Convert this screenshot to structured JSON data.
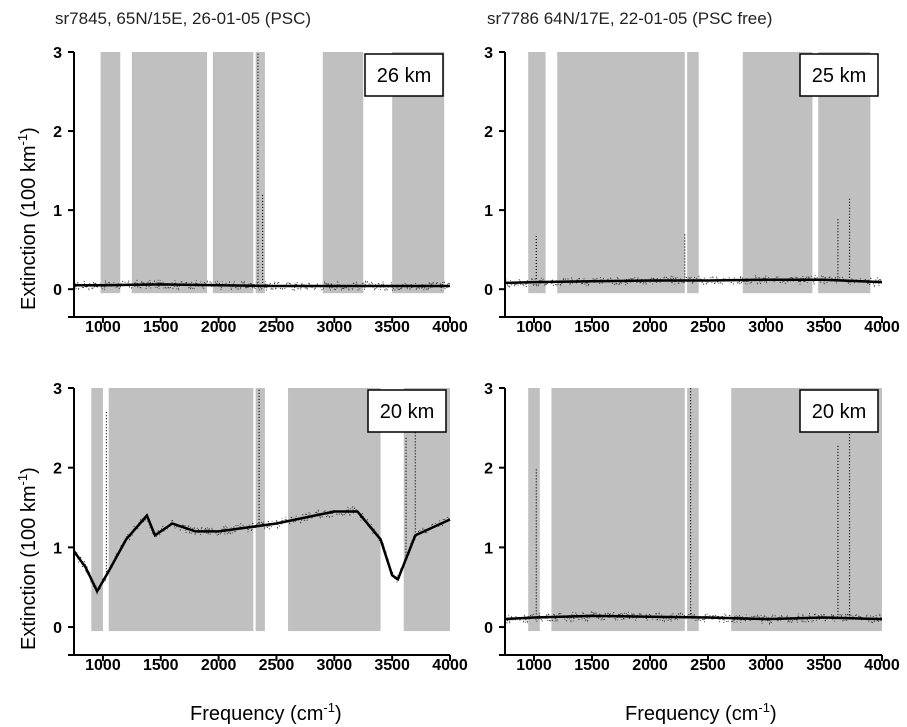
{
  "figure": {
    "ylabel": "Extinction (100 km",
    "ylabel_sup": "-1",
    "ylabel_close": ")",
    "xlabel": "Frequency (cm",
    "xlabel_sup": "-1",
    "xlabel_close": ")"
  },
  "chart_data": [
    {
      "type": "line",
      "title": "sr7845, 65N/15E, 26-01-05 (PSC)",
      "annotation": "26 km",
      "xlim": [
        750,
        4000
      ],
      "ylim": [
        -0.2,
        3
      ],
      "xticks": [
        1000,
        1500,
        2000,
        2500,
        3000,
        3500,
        4000
      ],
      "yticks": [
        0,
        1,
        2,
        3
      ],
      "fit_curve": {
        "x": [
          750,
          1000,
          1500,
          2000,
          2500,
          3000,
          3500,
          4000
        ],
        "y": [
          0.05,
          0.05,
          0.06,
          0.05,
          0.04,
          0.04,
          0.04,
          0.04
        ]
      },
      "gray_bands": [
        [
          980,
          1150
        ],
        [
          1250,
          1900
        ],
        [
          1950,
          2300
        ],
        [
          2320,
          2400
        ],
        [
          2900,
          3250
        ],
        [
          3500,
          3950
        ]
      ],
      "spikes": [
        {
          "x": 2340,
          "y": 3.0
        },
        {
          "x": 2380,
          "y": 1.2
        }
      ]
    },
    {
      "type": "line",
      "title": "sr7786 64N/17E, 22-01-05 (PSC free)",
      "annotation": "25 km",
      "xlim": [
        750,
        4000
      ],
      "ylim": [
        -0.2,
        3
      ],
      "xticks": [
        1000,
        1500,
        2000,
        2500,
        3000,
        3500,
        4000
      ],
      "yticks": [
        0,
        1,
        2,
        3
      ],
      "fit_curve": {
        "x": [
          750,
          1000,
          1500,
          2000,
          2500,
          3000,
          3500,
          4000
        ],
        "y": [
          0.08,
          0.09,
          0.1,
          0.11,
          0.11,
          0.12,
          0.12,
          0.09
        ]
      },
      "gray_bands": [
        [
          950,
          1100
        ],
        [
          1200,
          2300
        ],
        [
          2320,
          2420
        ],
        [
          2800,
          3400
        ],
        [
          3450,
          3900
        ]
      ],
      "spikes": [
        {
          "x": 1020,
          "y": 0.7
        },
        {
          "x": 2300,
          "y": 0.7
        },
        {
          "x": 3620,
          "y": 0.9
        },
        {
          "x": 3720,
          "y": 1.15
        }
      ]
    },
    {
      "type": "line",
      "title": "",
      "annotation": "20 km",
      "xlim": [
        750,
        4000
      ],
      "ylim": [
        -0.2,
        3
      ],
      "xticks": [
        1000,
        1500,
        2000,
        2500,
        3000,
        3500,
        4000
      ],
      "yticks": [
        0,
        1,
        2,
        3
      ],
      "fit_curve": {
        "x": [
          750,
          850,
          950,
          1050,
          1200,
          1380,
          1450,
          1600,
          1800,
          2000,
          2500,
          3000,
          3200,
          3400,
          3500,
          3550,
          3700,
          4000
        ],
        "y": [
          0.95,
          0.75,
          0.45,
          0.7,
          1.1,
          1.4,
          1.15,
          1.3,
          1.2,
          1.2,
          1.3,
          1.45,
          1.45,
          1.1,
          0.65,
          0.6,
          1.15,
          1.35
        ]
      },
      "gray_bands": [
        [
          900,
          1000
        ],
        [
          1050,
          2300
        ],
        [
          2320,
          2400
        ],
        [
          2600,
          3400
        ],
        [
          3600,
          4000
        ]
      ],
      "spikes": [
        {
          "x": 1030,
          "y": 2.7
        },
        {
          "x": 2350,
          "y": 3.0
        },
        {
          "x": 3620,
          "y": 2.4
        },
        {
          "x": 3700,
          "y": 2.5
        }
      ]
    },
    {
      "type": "line",
      "title": "",
      "annotation": "20 km",
      "xlim": [
        750,
        4000
      ],
      "ylim": [
        -0.2,
        3
      ],
      "xticks": [
        1000,
        1500,
        2000,
        2500,
        3000,
        3500,
        4000
      ],
      "yticks": [
        0,
        1,
        2,
        3
      ],
      "fit_curve": {
        "x": [
          750,
          1000,
          1500,
          2000,
          2500,
          3000,
          3500,
          4000
        ],
        "y": [
          0.1,
          0.12,
          0.14,
          0.13,
          0.12,
          0.1,
          0.12,
          0.1
        ]
      },
      "gray_bands": [
        [
          950,
          1050
        ],
        [
          1150,
          2300
        ],
        [
          2320,
          2420
        ],
        [
          2700,
          4000
        ]
      ],
      "spikes": [
        {
          "x": 1020,
          "y": 2.0
        },
        {
          "x": 2350,
          "y": 3.0
        },
        {
          "x": 3620,
          "y": 2.3
        },
        {
          "x": 3720,
          "y": 2.6
        }
      ]
    }
  ]
}
